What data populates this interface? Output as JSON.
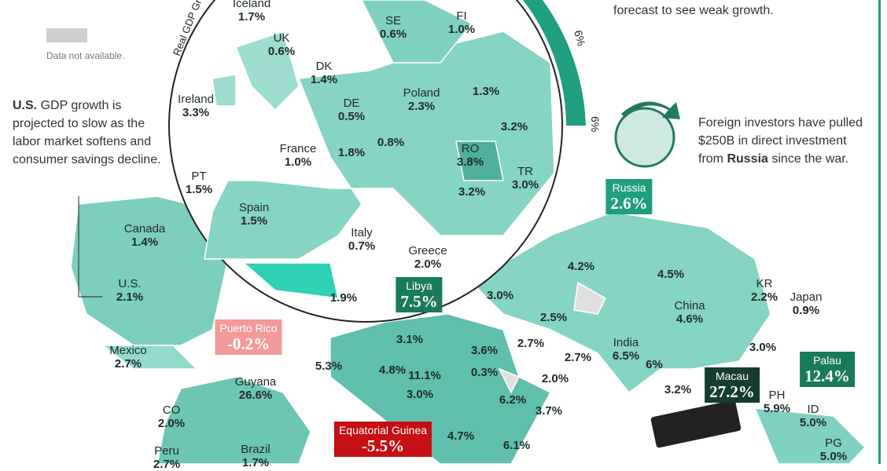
{
  "header": {
    "axis_label": "Real GDP Gro",
    "note_top": "forecast to see weak growth.",
    "scale_labels": [
      "6%",
      "6%"
    ]
  },
  "legend": {
    "label": "Data not available."
  },
  "notes": {
    "us": {
      "bold": "U.S.",
      "text": " GDP growth is projected to slow as the labor market softens and consumer savings decline."
    },
    "russia": {
      "before": "Foreign investors have pulled $250B in direct investment from ",
      "bold": "Russia",
      "after": " since the war."
    }
  },
  "countries": [
    {
      "name": "Iceland",
      "value": "1.7%"
    },
    {
      "name": "SE",
      "value": "0.6%"
    },
    {
      "name": "FI",
      "value": "1.0%"
    },
    {
      "name": "UK",
      "value": "0.6%"
    },
    {
      "name": "DK",
      "value": "1.4%"
    },
    {
      "name": "Ireland",
      "value": "3.3%"
    },
    {
      "name": "DE",
      "value": "0.5%"
    },
    {
      "name": "Poland",
      "value": "2.3%"
    },
    {
      "value": "1.3%"
    },
    {
      "value": "3.2%"
    },
    {
      "name": "France",
      "value": "1.0%"
    },
    {
      "value": "1.8%"
    },
    {
      "value": "0.8%"
    },
    {
      "name": "RO",
      "value": "3.8%"
    },
    {
      "name": "TR",
      "value": "3.0%"
    },
    {
      "name": "PT",
      "value": "1.5%"
    },
    {
      "name": "Spain",
      "value": "1.5%"
    },
    {
      "value": "3.2%"
    },
    {
      "name": "Italy",
      "value": "0.7%"
    },
    {
      "name": "Greece",
      "value": "2.0%"
    },
    {
      "value": "1.9%"
    },
    {
      "name": "Russia",
      "value": "2.6%"
    },
    {
      "name": "Canada",
      "value": "1.4%"
    },
    {
      "name": "U.S.",
      "value": "2.1%"
    },
    {
      "name": "Libya",
      "value": "7.5%"
    },
    {
      "value": "3.0%"
    },
    {
      "value": "4.2%"
    },
    {
      "value": "4.5%"
    },
    {
      "name": "KR",
      "value": "2.2%"
    },
    {
      "name": "Japan",
      "value": "0.9%"
    },
    {
      "name": "China",
      "value": "4.6%"
    },
    {
      "value": "2.5%"
    },
    {
      "value": "3.1%"
    },
    {
      "value": "3.6%"
    },
    {
      "value": "2.7%"
    },
    {
      "name": "Puerto Rico",
      "value": "-0.2%"
    },
    {
      "name": "India",
      "value": "6.5%"
    },
    {
      "value": "6%"
    },
    {
      "value": "3.0%"
    },
    {
      "name": "Palau",
      "value": "12.4%"
    },
    {
      "value": "5.3%"
    },
    {
      "value": "4.8%"
    },
    {
      "value": "11.1%"
    },
    {
      "value": "0.3%"
    },
    {
      "value": "2.7%"
    },
    {
      "value": "2.0%"
    },
    {
      "name": "Mexico",
      "value": "2.7%"
    },
    {
      "name": "Guyana",
      "value": "26.6%"
    },
    {
      "value": "3.0%"
    },
    {
      "name": "Macau",
      "value": "27.2%"
    },
    {
      "value": "3.2%"
    },
    {
      "name": "PH",
      "value": "5.9%"
    },
    {
      "name": "ID",
      "value": "5.0%"
    },
    {
      "name": "CO",
      "value": "2.0%"
    },
    {
      "value": "6.2%"
    },
    {
      "value": "3.7%"
    },
    {
      "name": "Equatorial Guinea",
      "value": "-5.5%"
    },
    {
      "value": "4.7%"
    },
    {
      "value": "6.1%"
    },
    {
      "name": "Peru",
      "value": "2.7%"
    },
    {
      "name": "Brazil",
      "value": "1.7%"
    },
    {
      "name": "PG",
      "value": "5.0%"
    }
  ]
}
